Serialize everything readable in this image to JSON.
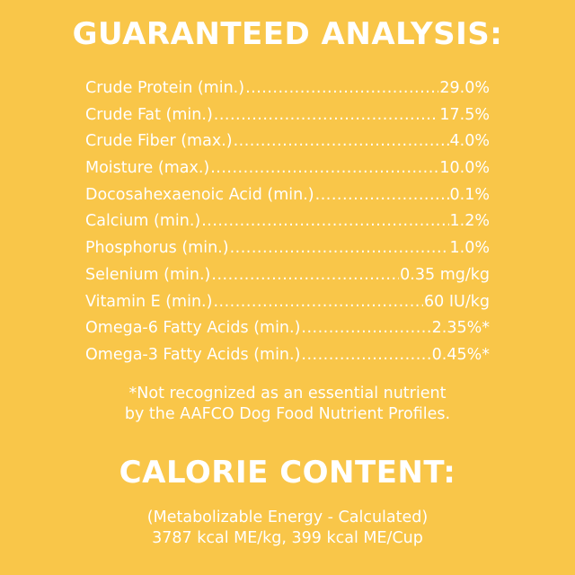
{
  "guaranteed_analysis": {
    "title": "GUARANTEED ANALYSIS:",
    "rows": [
      {
        "label": "Crude Protein (min.)",
        "value": "29.0%"
      },
      {
        "label": "Crude Fat (min.)",
        "value": "17.5%"
      },
      {
        "label": "Crude Fiber (max.)",
        "value": "4.0%"
      },
      {
        "label": "Moisture (max.)",
        "value": "10.0%"
      },
      {
        "label": "Docosahexaenoic Acid (min.)",
        "value": "0.1%"
      },
      {
        "label": "Calcium (min.)",
        "value": "1.2%"
      },
      {
        "label": "Phosphorus (min.)",
        "value": "1.0%"
      },
      {
        "label": "Selenium (min.)",
        "value": "0.35 mg/kg"
      },
      {
        "label": "Vitamin E (min.)",
        "value": "60 IU/kg"
      },
      {
        "label": "Omega-6 Fatty Acids (min.)",
        "value": "2.35%*"
      },
      {
        "label": "Omega-3 Fatty Acids (min.)",
        "value": "0.45%*"
      }
    ],
    "footnote_line1": "*Not recognized as an essential nutrient",
    "footnote_line2": "by the AAFCO Dog Food Nutrient Profiles."
  },
  "calorie_content": {
    "title": "CALORIE CONTENT:",
    "line1": "(Metabolizable Energy - Calculated)",
    "line2": "3787 kcal ME/kg, 399 kcal ME/Cup"
  },
  "colors": {
    "background": "#f9c649",
    "text": "#ffffff"
  }
}
